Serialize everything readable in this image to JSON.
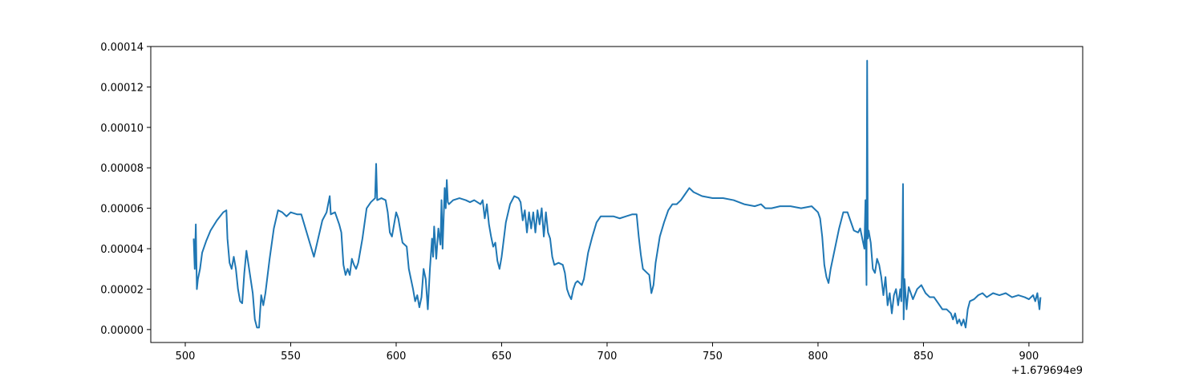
{
  "chart_data": {
    "type": "line",
    "x_offset_label": "+1.679694e9",
    "color": "#1f77b4",
    "xlim": [
      483.65,
      925.5
    ],
    "ylim": [
      -6.4e-06,
      0.00014
    ],
    "xticks": [
      500,
      550,
      600,
      650,
      700,
      750,
      800,
      850,
      900
    ],
    "yticks": [
      {
        "value": 0,
        "label": "0.00000"
      },
      {
        "value": 2e-05,
        "label": "0.00002"
      },
      {
        "value": 4e-05,
        "label": "0.00004"
      },
      {
        "value": 6e-05,
        "label": "0.00006"
      },
      {
        "value": 8e-05,
        "label": "0.00008"
      },
      {
        "value": 0.0001,
        "label": "0.00010"
      },
      {
        "value": 0.00012,
        "label": "0.00012"
      },
      {
        "value": 0.00014,
        "label": "0.00014"
      }
    ],
    "x": [
      504,
      504.5,
      505,
      505.5,
      506,
      507,
      508,
      510,
      512,
      515,
      518,
      519.5,
      520,
      521,
      522,
      523,
      524,
      525,
      526,
      527,
      528,
      529,
      530,
      531,
      532,
      533,
      534,
      535,
      536,
      537,
      538,
      540,
      542,
      544,
      546,
      548,
      550,
      553,
      555,
      557,
      559,
      561,
      563,
      565,
      567,
      568.5,
      569,
      571,
      573,
      574,
      575,
      576,
      577,
      578,
      579,
      580,
      581,
      582,
      584,
      586,
      588,
      590,
      590.5,
      591,
      593,
      595,
      596,
      597,
      598,
      600,
      601,
      603,
      605,
      606,
      607,
      608,
      609,
      610,
      611,
      612,
      613,
      614,
      615,
      616,
      617,
      617.5,
      618,
      619,
      620,
      621,
      621.5,
      622,
      623,
      623.5,
      624,
      624.5,
      625,
      627,
      630,
      633,
      635,
      637,
      640,
      641,
      642,
      643,
      644,
      645,
      646,
      647,
      648,
      649,
      650,
      652,
      654,
      656,
      658,
      659,
      660,
      661,
      662,
      663,
      664,
      665,
      666,
      667,
      668,
      669,
      670,
      671,
      672,
      673,
      674,
      675,
      677,
      679,
      680,
      681,
      682,
      683,
      684,
      685,
      686,
      688,
      689,
      691,
      693,
      695,
      697,
      700,
      703,
      706,
      709,
      712,
      714,
      715,
      716,
      717,
      719,
      720,
      721,
      722,
      723,
      725,
      727,
      729,
      731,
      733,
      735,
      737,
      739,
      741,
      743,
      745,
      750,
      755,
      760,
      765,
      770,
      773,
      775,
      778,
      782,
      787,
      792,
      797,
      800,
      801,
      802,
      803,
      804,
      805,
      806,
      808,
      810,
      812,
      814,
      815,
      817,
      819,
      820,
      821,
      822,
      822.5,
      823,
      823.3,
      823.6,
      824,
      825,
      826,
      827,
      828,
      829,
      830,
      831,
      832,
      833,
      834,
      835,
      836,
      837,
      838,
      839,
      839.5,
      840,
      840.3,
      840.6,
      841,
      842,
      843,
      845,
      847,
      849,
      851,
      853,
      855,
      857,
      859,
      861,
      863,
      864,
      865,
      866,
      867,
      868,
      869,
      870,
      871,
      872,
      874,
      876,
      878,
      880,
      883,
      886,
      889,
      892,
      895,
      898,
      900,
      902,
      903,
      904,
      905,
      905.5
    ],
    "values": [
      4.5e-05,
      3e-05,
      5.2e-05,
      2e-05,
      2.5e-05,
      3e-05,
      3.8e-05,
      4.4e-05,
      4.9e-05,
      5.4e-05,
      5.8e-05,
      5.9e-05,
      4.5e-05,
      3.3e-05,
      3e-05,
      3.6e-05,
      3e-05,
      2e-05,
      1.4e-05,
      1.3e-05,
      2.8e-05,
      3.9e-05,
      3.2e-05,
      2.5e-05,
      1.8e-05,
      5e-06,
      1e-06,
      1e-06,
      1.7e-05,
      1.2e-05,
      1.8e-05,
      3.5e-05,
      5e-05,
      5.9e-05,
      5.8e-05,
      5.6e-05,
      5.8e-05,
      5.7e-05,
      5.7e-05,
      5e-05,
      4.3e-05,
      3.6e-05,
      4.5e-05,
      5.4e-05,
      5.8e-05,
      6.6e-05,
      5.7e-05,
      5.8e-05,
      5.2e-05,
      4.8e-05,
      3.2e-05,
      2.7e-05,
      3e-05,
      2.7e-05,
      3.5e-05,
      3.2e-05,
      3e-05,
      3.3e-05,
      4.5e-05,
      6e-05,
      6.3e-05,
      6.5e-05,
      8.2e-05,
      6.4e-05,
      6.5e-05,
      6.4e-05,
      5.8e-05,
      4.8e-05,
      4.6e-05,
      5.8e-05,
      5.5e-05,
      4.3e-05,
      4.1e-05,
      3e-05,
      2.5e-05,
      2e-05,
      1.4e-05,
      1.7e-05,
      1.1e-05,
      1.6e-05,
      3e-05,
      2.5e-05,
      1e-05,
      3e-05,
      4.5e-05,
      3.6e-05,
      5.1e-05,
      3.5e-05,
      5e-05,
      4.2e-05,
      6.4e-05,
      4e-05,
      7e-05,
      6e-05,
      7.4e-05,
      6.3e-05,
      6.2e-05,
      6.4e-05,
      6.5e-05,
      6.4e-05,
      6.3e-05,
      6.4e-05,
      6.2e-05,
      6.4e-05,
      5.5e-05,
      6.2e-05,
      5.2e-05,
      4.6e-05,
      4.1e-05,
      4.3e-05,
      3.4e-05,
      3e-05,
      3.6e-05,
      5.3e-05,
      6.2e-05,
      6.6e-05,
      6.5e-05,
      6.3e-05,
      5.4e-05,
      5.9e-05,
      4.8e-05,
      5.8e-05,
      5e-05,
      5.8e-05,
      4.8e-05,
      5.9e-05,
      5.2e-05,
      6e-05,
      4.6e-05,
      5.8e-05,
      4.8e-05,
      4.5e-05,
      3.6e-05,
      3.2e-05,
      3.3e-05,
      3.2e-05,
      2.8e-05,
      2e-05,
      1.7e-05,
      1.5e-05,
      2e-05,
      2.3e-05,
      2.4e-05,
      2.2e-05,
      2.5e-05,
      3.8e-05,
      4.6e-05,
      5.3e-05,
      5.6e-05,
      5.6e-05,
      5.6e-05,
      5.5e-05,
      5.6e-05,
      5.7e-05,
      5.7e-05,
      4.6e-05,
      3.7e-05,
      3e-05,
      2.8e-05,
      2.7e-05,
      1.8e-05,
      2.2e-05,
      3.3e-05,
      4.6e-05,
      5.3e-05,
      5.9e-05,
      6.2e-05,
      6.2e-05,
      6.4e-05,
      6.7e-05,
      7e-05,
      6.8e-05,
      6.7e-05,
      6.6e-05,
      6.5e-05,
      6.5e-05,
      6.4e-05,
      6.2e-05,
      6.1e-05,
      6.2e-05,
      6e-05,
      6e-05,
      6.1e-05,
      6.1e-05,
      6e-05,
      6.1e-05,
      5.8e-05,
      5.5e-05,
      4.6e-05,
      3.2e-05,
      2.6e-05,
      2.3e-05,
      3e-05,
      4e-05,
      5e-05,
      5.8e-05,
      5.8e-05,
      5.5e-05,
      4.9e-05,
      4.8e-05,
      5e-05,
      4.5e-05,
      4e-05,
      6.4e-05,
      2.2e-05,
      0.000133,
      4.5e-05,
      4.9e-05,
      4.3e-05,
      3e-05,
      2.8e-05,
      3.5e-05,
      3.2e-05,
      2.6e-05,
      1.7e-05,
      2.6e-05,
      1.2e-05,
      1.8e-05,
      8e-06,
      1.7e-05,
      2e-05,
      1.2e-05,
      2e-05,
      1.4e-05,
      3.8e-05,
      7.2e-05,
      5e-06,
      2.5e-05,
      1e-05,
      2.1e-05,
      1.5e-05,
      2e-05,
      2.2e-05,
      1.8e-05,
      1.6e-05,
      1.6e-05,
      1.3e-05,
      1e-05,
      1e-05,
      8e-06,
      5e-06,
      8e-06,
      3e-06,
      5e-06,
      2e-06,
      5e-06,
      1e-06,
      1e-05,
      1.4e-05,
      1.5e-05,
      1.7e-05,
      1.8e-05,
      1.6e-05,
      1.8e-05,
      1.7e-05,
      1.8e-05,
      1.6e-05,
      1.7e-05,
      1.6e-05,
      1.5e-05,
      1.7e-05,
      1.4e-05,
      1.8e-05,
      1e-05,
      1.6e-05
    ]
  }
}
